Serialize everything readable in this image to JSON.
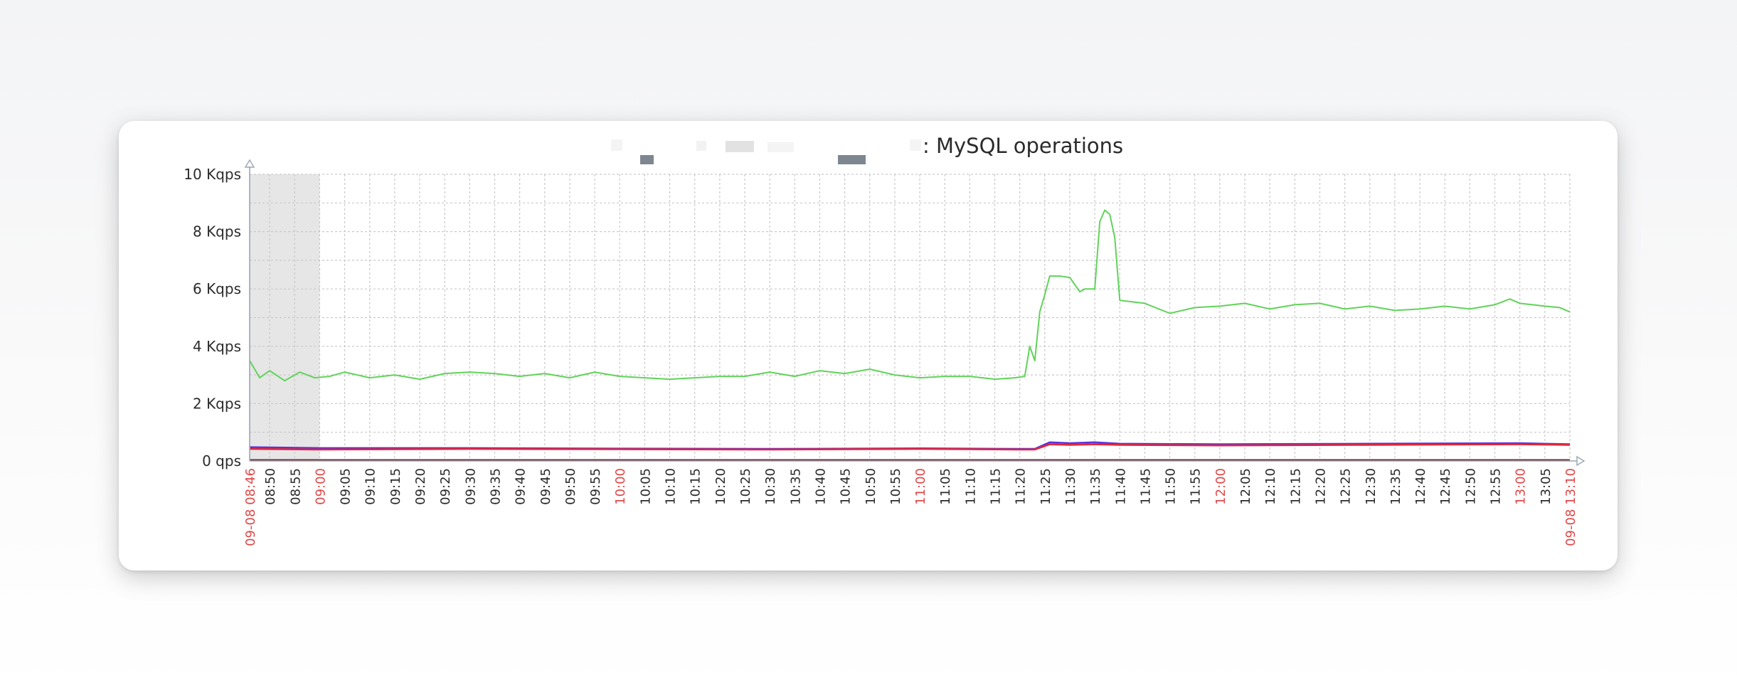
{
  "chart_data": {
    "type": "line",
    "title": ": MySQL operations",
    "yunit_ticks": [
      "0 qps",
      "2 Kqps",
      "4 Kqps",
      "6 Kqps",
      "8 Kqps",
      "10 Kqps"
    ],
    "ylim": [
      0,
      10000
    ],
    "xlim": [
      "09-08 08:46",
      "09-08 13:10"
    ],
    "grid": true,
    "shaded_region": [
      "08:46",
      "09:00"
    ],
    "x_ticks": [
      "09-08 08:46",
      "08:50",
      "08:55",
      "09:00",
      "09:05",
      "09:10",
      "09:15",
      "09:20",
      "09:25",
      "09:30",
      "09:35",
      "09:40",
      "09:45",
      "09:50",
      "09:55",
      "10:00",
      "10:05",
      "10:10",
      "10:15",
      "10:20",
      "10:25",
      "10:30",
      "10:35",
      "10:40",
      "10:45",
      "10:50",
      "10:55",
      "11:00",
      "11:05",
      "11:10",
      "11:15",
      "11:20",
      "11:25",
      "11:30",
      "11:35",
      "11:40",
      "11:45",
      "11:50",
      "11:55",
      "12:00",
      "12:05",
      "12:10",
      "12:15",
      "12:20",
      "12:25",
      "12:30",
      "12:35",
      "12:40",
      "12:45",
      "12:50",
      "12:55",
      "13:00",
      "13:05",
      "09-08 13:10"
    ],
    "major_ticks": [
      "09-08 08:46",
      "09:00",
      "10:00",
      "11:00",
      "12:00",
      "13:00",
      "09-08 13:10"
    ],
    "series": [
      {
        "color": "#61d35a",
        "x": [
          "08:46",
          "08:48",
          "08:50",
          "08:53",
          "08:56",
          "08:59",
          "09:02",
          "09:05",
          "09:10",
          "09:15",
          "09:20",
          "09:25",
          "09:30",
          "09:35",
          "09:40",
          "09:45",
          "09:50",
          "09:55",
          "10:00",
          "10:05",
          "10:10",
          "10:15",
          "10:20",
          "10:25",
          "10:30",
          "10:35",
          "10:40",
          "10:45",
          "10:50",
          "10:55",
          "11:00",
          "11:05",
          "11:10",
          "11:15",
          "11:19",
          "11:21",
          "11:22",
          "11:23",
          "11:24",
          "11:25",
          "11:26",
          "11:28",
          "11:30",
          "11:32",
          "11:33",
          "11:35",
          "11:36",
          "11:37",
          "11:38",
          "11:39",
          "11:40",
          "11:45",
          "11:50",
          "11:55",
          "12:00",
          "12:05",
          "12:10",
          "12:15",
          "12:20",
          "12:25",
          "12:30",
          "12:35",
          "12:40",
          "12:45",
          "12:50",
          "12:55",
          "12:58",
          "13:00",
          "13:05",
          "13:08",
          "13:10"
        ],
        "y": [
          3500,
          2900,
          3150,
          2800,
          3100,
          2900,
          2950,
          3100,
          2900,
          3000,
          2850,
          3050,
          3100,
          3050,
          2950,
          3050,
          2900,
          3100,
          2950,
          2900,
          2850,
          2900,
          2950,
          2950,
          3100,
          2950,
          3150,
          3050,
          3200,
          3000,
          2900,
          2950,
          2950,
          2850,
          2900,
          2950,
          4000,
          3500,
          5200,
          5800,
          6450,
          6450,
          6400,
          5900,
          6000,
          6000,
          8350,
          8750,
          8600,
          7800,
          5600,
          5500,
          5150,
          5350,
          5400,
          5500,
          5300,
          5450,
          5500,
          5300,
          5400,
          5250,
          5300,
          5400,
          5300,
          5450,
          5650,
          5500,
          5400,
          5350,
          5200
        ]
      },
      {
        "color": "#5a32e0",
        "x": [
          "08:46",
          "09:00",
          "09:30",
          "10:00",
          "10:30",
          "11:00",
          "11:20",
          "11:23",
          "11:26",
          "11:30",
          "11:35",
          "11:40",
          "12:00",
          "12:30",
          "13:00",
          "13:10"
        ],
        "y": [
          480,
          450,
          450,
          430,
          420,
          440,
          420,
          420,
          650,
          620,
          650,
          600,
          580,
          600,
          620,
          580
        ]
      },
      {
        "color": "#e0283c",
        "x": [
          "08:46",
          "09:00",
          "09:30",
          "10:00",
          "10:30",
          "11:00",
          "11:20",
          "11:23",
          "11:26",
          "11:30",
          "11:35",
          "11:40",
          "12:00",
          "12:30",
          "13:00",
          "13:10"
        ],
        "y": [
          420,
          400,
          420,
          410,
          400,
          420,
          400,
          400,
          580,
          560,
          580,
          560,
          540,
          560,
          580,
          560
        ]
      },
      {
        "color": "#7a2d33",
        "x": [
          "08:46",
          "13:10"
        ],
        "y": [
          30,
          30
        ]
      }
    ]
  }
}
